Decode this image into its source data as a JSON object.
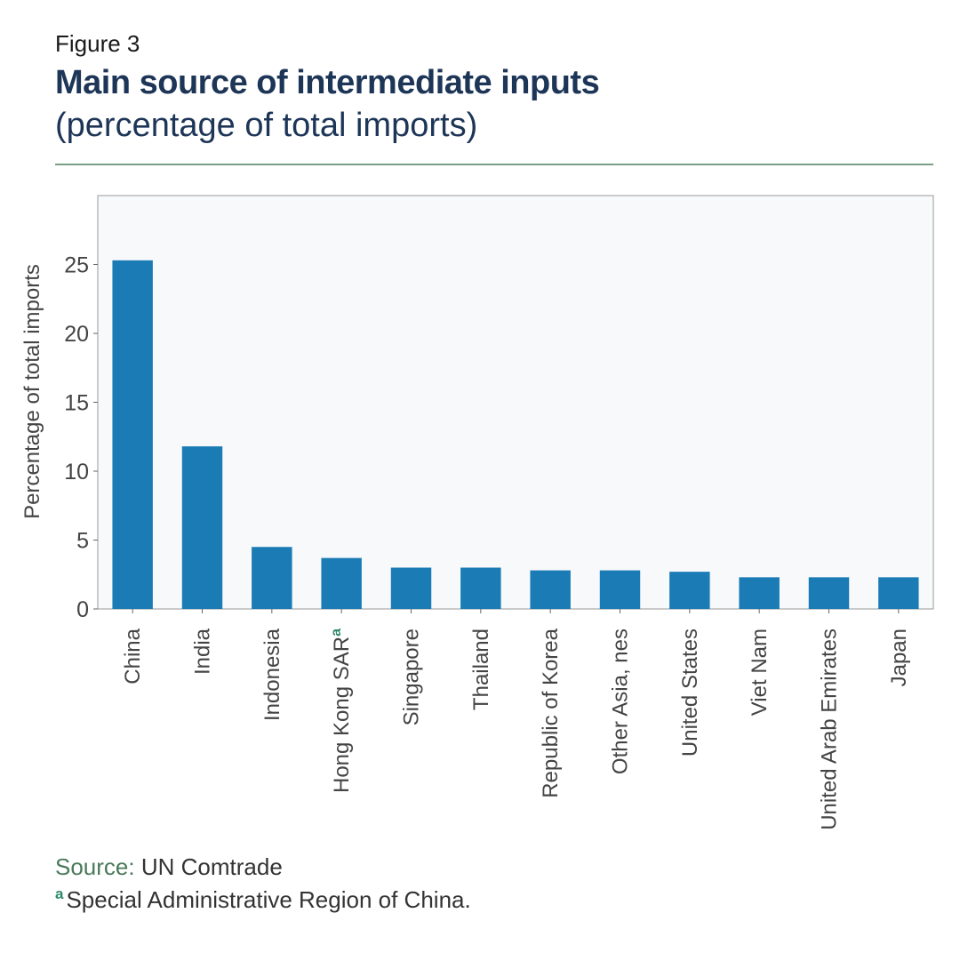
{
  "figure_label": "Figure 3",
  "title": "Main source of intermediate inputs",
  "subtitle": "(percentage of total imports)",
  "source": {
    "label": "Source:",
    "text": "UN Comtrade"
  },
  "footnote": {
    "marker": "a",
    "text": "Special Administrative Region of China."
  },
  "colors": {
    "bar": "#1a7bb5",
    "plot_background": "#f7f9fb",
    "footnote_marker": "#2f8a6a",
    "title": "#1d3557"
  },
  "chart_data": {
    "type": "bar",
    "categories": [
      "China",
      "India",
      "Indonesia",
      "Hong Kong SAR",
      "Singapore",
      "Thailand",
      "Republic of Korea",
      "Other Asia, nes",
      "United States",
      "Viet Nam",
      "United Arab Emirates",
      "Japan"
    ],
    "category_superscripts": [
      "",
      "",
      "",
      "a",
      "",
      "",
      "",
      "",
      "",
      "",
      "",
      ""
    ],
    "values": [
      25.3,
      11.8,
      4.5,
      3.7,
      3.0,
      3.0,
      2.8,
      2.8,
      2.7,
      2.3,
      2.3,
      2.3
    ],
    "ylabel": "Percentage of total imports",
    "ylim": [
      0,
      30
    ],
    "yticks": [
      0,
      5,
      10,
      15,
      20,
      25
    ],
    "grid": false
  }
}
